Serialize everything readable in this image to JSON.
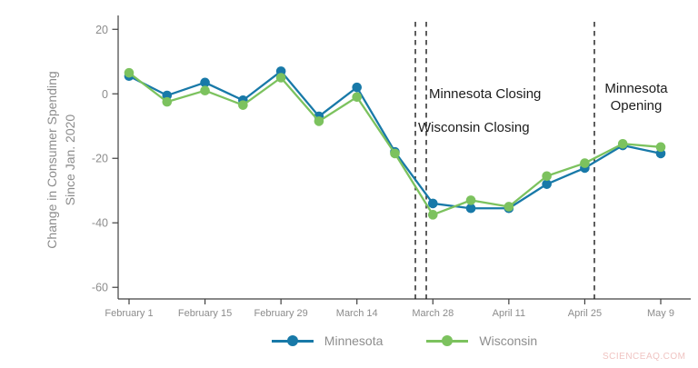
{
  "chart_data": {
    "type": "line",
    "title": "",
    "xlabel": "",
    "ylabel": "Change in Consumer Spending Since Jan. 2020",
    "ylabel_lines": [
      "Change in Consumer Spending",
      "Since Jan.  2020"
    ],
    "x": [
      "February 1",
      "February 8",
      "February 15",
      "February 22",
      "February 29",
      "March 7",
      "March 14",
      "March 21",
      "March 28",
      "April 4",
      "April 11",
      "April 18",
      "April 25",
      "May 2",
      "May 9"
    ],
    "x_tick_labels": [
      "February 1",
      "February 15",
      "February 29",
      "March 14",
      "March 28",
      "April 11",
      "April 25",
      "May 9"
    ],
    "y_ticks": [
      20,
      0,
      -20,
      -40,
      -60
    ],
    "ylim": [
      -63.6,
      24.3
    ],
    "grid": false,
    "legend_position": "bottom",
    "series": [
      {
        "name": "Minnesota",
        "color": "#1879a8",
        "values": [
          5.5,
          -0.5,
          3.5,
          -2,
          7,
          -7,
          2,
          -18,
          -34,
          -35.5,
          -35.5,
          -28,
          -23,
          -16,
          -18.5
        ]
      },
      {
        "name": "Wisconsin",
        "color": "#7cc25e",
        "values": [
          6.5,
          -2.5,
          1,
          -3.5,
          5,
          -8.5,
          -1,
          -18.5,
          -37.5,
          -33,
          -35,
          -25.5,
          -21.5,
          -15.5,
          -16.5
        ]
      }
    ],
    "vlines": [
      {
        "style": "dashed",
        "x_frac": 0.5385
      },
      {
        "style": "dashed",
        "x_frac": 0.559
      },
      {
        "style": "dashed",
        "x_frac": 0.8752
      }
    ],
    "annotations": [
      "Minnesota Closing",
      "Wisconsin Closing",
      "Minnesota Opening"
    ]
  },
  "legend": {
    "items": [
      {
        "label": "Minnesota",
        "color": "#1879a8"
      },
      {
        "label": "Wisconsin",
        "color": "#7cc25e"
      }
    ]
  },
  "colors": {
    "axis": "#404040",
    "tick_text": "#8c8c8c",
    "annotation_text": "#1c1c1c",
    "vline": "#1a1a1a",
    "watermark": "#f0c4c2"
  },
  "watermark": {
    "text": "SCIENCEAQ.COM"
  }
}
